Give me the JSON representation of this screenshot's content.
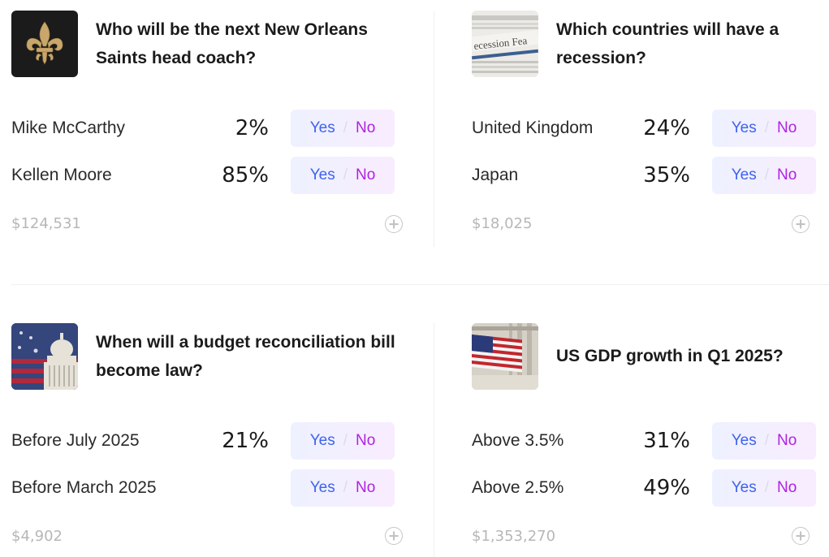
{
  "markets": [
    {
      "title": "Who will be the next New Orleans Saints head coach?",
      "thumbnail_icon": "fleur-de-lis-icon",
      "options": [
        {
          "label": "Mike McCarthy",
          "pct": "2%"
        },
        {
          "label": "Kellen Moore",
          "pct": "85%"
        }
      ],
      "volume": "$124,531"
    },
    {
      "title": "Which countries will have a recession?",
      "thumbnail_icon": "newspaper-icon",
      "thumbnail_text": "ecession Fea",
      "options": [
        {
          "label": "United Kingdom",
          "pct": "24%"
        },
        {
          "label": "Japan",
          "pct": "35%"
        }
      ],
      "volume": "$18,025"
    },
    {
      "title": "When will a budget reconciliation bill become law?",
      "thumbnail_icon": "capitol-flag-icon",
      "options": [
        {
          "label": "Before July 2025",
          "pct": "21%"
        },
        {
          "label": "Before March 2025",
          "pct": ""
        }
      ],
      "volume": "$4,902"
    },
    {
      "title": "US GDP growth in Q1 2025?",
      "thumbnail_icon": "us-flag-icon",
      "options": [
        {
          "label": "Above 3.5%",
          "pct": "31%"
        },
        {
          "label": "Above 2.5%",
          "pct": "49%"
        }
      ],
      "volume": "$1,353,270"
    }
  ],
  "buttons": {
    "yes": "Yes",
    "no": "No",
    "separator": "/"
  },
  "colors": {
    "yes": "#3e63ee",
    "no": "#b021e0",
    "muted": "#b7b7b7"
  }
}
